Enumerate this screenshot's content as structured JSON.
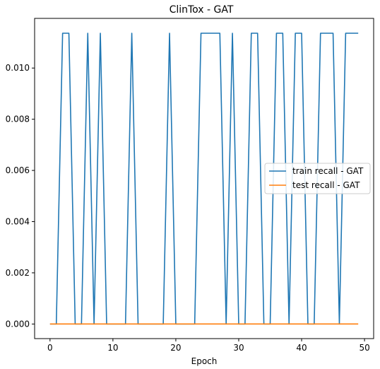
{
  "chart_data": {
    "type": "line",
    "title": "ClinTox - GAT",
    "xlabel": "Epoch",
    "ylabel": "",
    "xlim": [
      -2.45,
      51.45
    ],
    "ylim": [
      -0.00057,
      0.01194
    ],
    "xticks": [
      0,
      10,
      20,
      30,
      40,
      50
    ],
    "yticks": [
      0.0,
      0.002,
      0.004,
      0.006,
      0.008,
      0.01
    ],
    "ytick_labels": [
      "0.000",
      "0.002",
      "0.004",
      "0.006",
      "0.008",
      "0.010"
    ],
    "grid": false,
    "legend_position": "center-right",
    "x": [
      0,
      1,
      2,
      3,
      4,
      5,
      6,
      7,
      8,
      9,
      10,
      11,
      12,
      13,
      14,
      15,
      16,
      17,
      18,
      19,
      20,
      21,
      22,
      23,
      24,
      25,
      26,
      27,
      28,
      29,
      30,
      31,
      32,
      33,
      34,
      35,
      36,
      37,
      38,
      39,
      40,
      41,
      42,
      43,
      44,
      45,
      46,
      47,
      48,
      49
    ],
    "series": [
      {
        "name": "train recall - GAT",
        "color": "#1f77b4",
        "values": [
          0,
          0,
          0.01136,
          0.01136,
          0,
          0,
          0.01136,
          0,
          0.01136,
          0,
          0,
          0,
          0,
          0.01136,
          0,
          0,
          0,
          0,
          0,
          0.01136,
          0,
          0,
          0,
          0,
          0.01136,
          0.01136,
          0.01136,
          0.01136,
          0,
          0.01136,
          0,
          0,
          0.01136,
          0.01136,
          0,
          0,
          0.01136,
          0.01136,
          0,
          0.01136,
          0.01136,
          0,
          0,
          0.01136,
          0.01136,
          0.01136,
          0,
          0.01136,
          0.01136,
          0.01136
        ]
      },
      {
        "name": "test recall - GAT",
        "color": "#ff7f0e",
        "values": [
          0,
          0,
          0,
          0,
          0,
          0,
          0,
          0,
          0,
          0,
          0,
          0,
          0,
          0,
          0,
          0,
          0,
          0,
          0,
          0,
          0,
          0,
          0,
          0,
          0,
          0,
          0,
          0,
          0,
          0,
          0,
          0,
          0,
          0,
          0,
          0,
          0,
          0,
          0,
          0,
          0,
          0,
          0,
          0,
          0,
          0,
          0,
          0,
          0,
          0
        ]
      }
    ]
  }
}
